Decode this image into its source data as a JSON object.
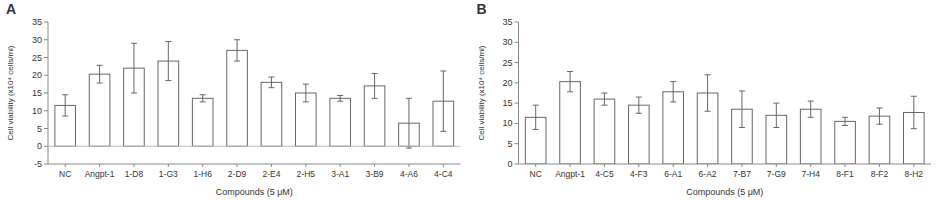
{
  "chart_data": [
    {
      "type": "bar",
      "title": "A",
      "categories": [
        "NC",
        "Angpt-1",
        "1-D8",
        "1-G3",
        "1-H6",
        "2-D9",
        "2-E4",
        "2-H5",
        "3-A1",
        "3-B9",
        "4-A6",
        "4-C4"
      ],
      "values": [
        11.5,
        20.3,
        22.0,
        24.0,
        13.5,
        27.0,
        18.0,
        15.0,
        13.5,
        17.0,
        6.5,
        12.7
      ],
      "errors": [
        3.0,
        2.5,
        7.0,
        5.5,
        1.0,
        3.0,
        1.5,
        2.5,
        0.8,
        3.5,
        7.0,
        8.5
      ],
      "xlabel": "Compounds (5 μM)",
      "ylabel": "Cell viability (x10⁴ cells/ml)",
      "color": "#ffffff",
      "ylim": [
        -5,
        35
      ],
      "yticks": [
        -5,
        0,
        5,
        10,
        15,
        20,
        25,
        30,
        35
      ]
    },
    {
      "type": "bar",
      "title": "B",
      "categories": [
        "NC",
        "Angpt-1",
        "4-C5",
        "4-F3",
        "6-A1",
        "6-A2",
        "7-B7",
        "7-G9",
        "7-H4",
        "8-F1",
        "8-F2",
        "8-H2"
      ],
      "values": [
        11.5,
        20.3,
        16.0,
        14.5,
        17.8,
        17.5,
        13.5,
        12.0,
        13.5,
        10.5,
        11.8,
        12.7
      ],
      "errors": [
        3.0,
        2.5,
        1.5,
        2.0,
        2.5,
        4.5,
        4.5,
        3.0,
        2.0,
        1.0,
        2.0,
        4.0
      ],
      "xlabel": "Compounds (5 μM)",
      "ylabel": "Cell viability (x10⁴ cells/ml)",
      "color": "#ffffff",
      "ylim": [
        0,
        35
      ],
      "yticks": [
        0,
        5,
        10,
        15,
        20,
        25,
        30,
        35
      ]
    }
  ]
}
